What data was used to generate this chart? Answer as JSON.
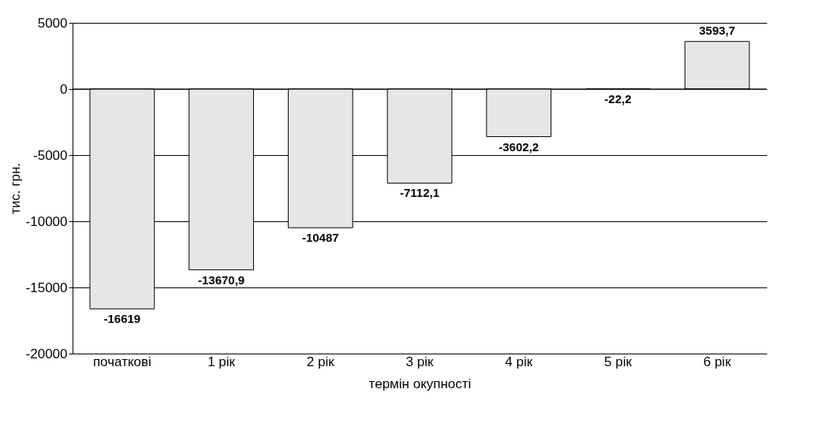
{
  "chart_data": {
    "type": "bar",
    "xlabel": "термін окупності",
    "ylabel": "тис. грн.",
    "categories": [
      "початкові",
      "1 рік",
      "2 рік",
      "3 рік",
      "4 рік",
      "5 рік",
      "6 рік"
    ],
    "values": [
      -16619,
      -13670.9,
      -10487,
      -7112.1,
      -3602.2,
      -22.2,
      3593.7
    ],
    "value_labels": [
      "-16619",
      "-13670,9",
      "-10487",
      "-7112,1",
      "-3602,2",
      "-22,2",
      "3593,7"
    ],
    "color": "#e6e6e6",
    "ylim": [
      -20000,
      5000
    ],
    "yticks": [
      -20000,
      -15000,
      -10000,
      -5000,
      0,
      5000
    ],
    "grid": "y"
  }
}
